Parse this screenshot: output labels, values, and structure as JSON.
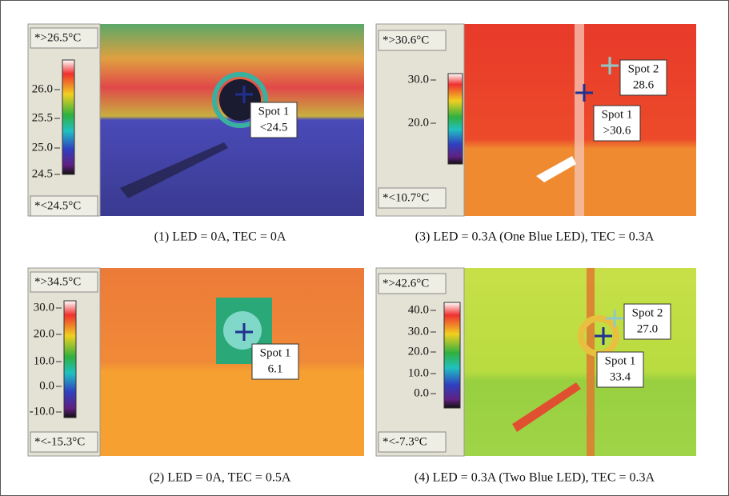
{
  "panels": [
    {
      "max_label": "*>26.5°C",
      "min_label": "*<24.5°C",
      "scale_ticks": [
        "26.0",
        "25.5",
        "25.0",
        "24.5"
      ],
      "spots": [
        {
          "label": "Spot 1",
          "value": "<24.5"
        }
      ],
      "caption": "(1) LED = 0A, TEC = 0A"
    },
    {
      "max_label": "*>30.6°C",
      "min_label": "*<10.7°C",
      "scale_ticks": [
        "30.0",
        "20.0"
      ],
      "spots": [
        {
          "label": "Spot 2",
          "value": "28.6"
        },
        {
          "label": "Spot 1",
          "value": ">30.6"
        }
      ],
      "caption": "(3) LED = 0.3A (One Blue LED), TEC = 0.3A"
    },
    {
      "max_label": "*>34.5°C",
      "min_label": "*<-15.3°C",
      "scale_ticks": [
        "30.0",
        "20.0",
        "10.0",
        "0.0",
        "-10.0"
      ],
      "spots": [
        {
          "label": "Spot 1",
          "value": "6.1"
        }
      ],
      "caption": "(2) LED = 0A, TEC = 0.5A"
    },
    {
      "max_label": "*>42.6°C",
      "min_label": "*<-7.3°C",
      "scale_ticks": [
        "40.0",
        "30.0",
        "20.0",
        "10.0",
        "0.0"
      ],
      "spots": [
        {
          "label": "Spot 2",
          "value": "27.0"
        },
        {
          "label": "Spot 1",
          "value": "33.4"
        }
      ],
      "caption": "(4) LED = 0.3A (Two Blue LED), TEC = 0.3A"
    }
  ]
}
